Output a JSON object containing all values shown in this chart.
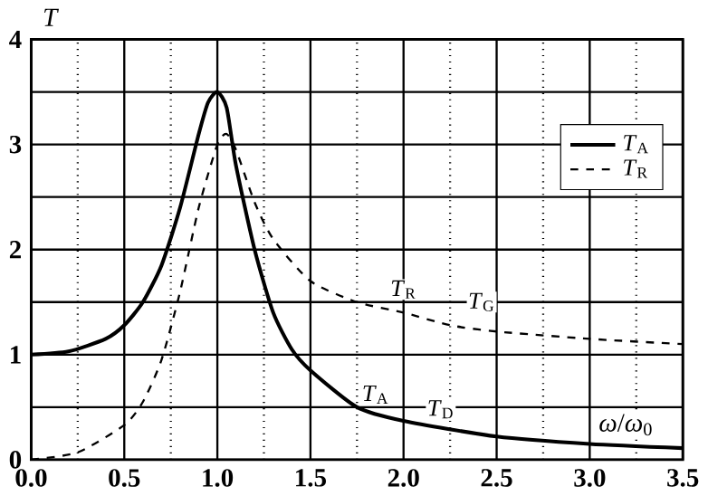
{
  "chart_data": {
    "type": "line",
    "xlabel": "*ω*/*ω*$_{0}$",
    "ylabel": "*T*",
    "x": [
      0,
      0.2,
      0.4,
      0.5,
      0.6,
      0.7,
      0.8,
      0.9,
      0.95,
      1.0,
      1.05,
      1.1,
      1.2,
      1.3,
      1.4,
      1.5,
      1.75,
      2.0,
      2.5,
      3.0,
      3.5
    ],
    "series": [
      {
        "name": "*T*$_{A}$",
        "color": "#000000",
        "line_style": "solid",
        "values": [
          1,
          1.03,
          1.15,
          1.28,
          1.5,
          1.85,
          2.4,
          3.1,
          3.4,
          3.5,
          3.35,
          2.8,
          2.0,
          1.4,
          1.05,
          0.85,
          0.5,
          0.37,
          0.22,
          0.15,
          0.11
        ]
      },
      {
        "name": "*T*$_{R}$",
        "color": "#000000",
        "line_style": "dashed",
        "x": [
          0,
          0.25,
          0.5,
          0.6,
          0.7,
          0.8,
          0.9,
          1.0,
          1.05,
          1.1,
          1.2,
          1.3,
          1.5,
          1.75,
          2.0,
          2.25,
          2.5,
          3.0,
          3.5
        ],
        "values": [
          0,
          0.07,
          0.33,
          0.55,
          0.95,
          1.6,
          2.4,
          3.0,
          3.1,
          2.95,
          2.45,
          2.1,
          1.7,
          1.5,
          1.4,
          1.28,
          1.22,
          1.15,
          1.1
        ]
      }
    ],
    "xlim": [
      0,
      3.5
    ],
    "xticks": [
      {
        "value": 0,
        "label": "0.0"
      },
      {
        "value": 0.25,
        "label": null
      },
      {
        "value": 0.5,
        "label": "0.5"
      },
      {
        "value": 0.75,
        "label": null
      },
      {
        "value": 1,
        "label": "1.0"
      },
      {
        "value": 1.25,
        "label": null
      },
      {
        "value": 1.5,
        "label": "1.5"
      },
      {
        "value": 1.75,
        "label": null
      },
      {
        "value": 2,
        "label": "2.0"
      },
      {
        "value": 2.25,
        "label": null
      },
      {
        "value": 2.5,
        "label": "2.5"
      },
      {
        "value": 2.75,
        "label": null
      },
      {
        "value": 3,
        "label": "3.0"
      },
      {
        "value": 3.25,
        "label": null
      },
      {
        "value": 3.5,
        "label": "3.5"
      }
    ],
    "ylim": [
      0,
      4
    ],
    "yticks": [
      0,
      {
        "value": 0.5,
        "label": null
      },
      1,
      {
        "value": 1.5,
        "label": null
      },
      2,
      {
        "value": 2.5,
        "label": null
      },
      3,
      {
        "value": 3.5,
        "label": null
      },
      4
    ],
    "grid": true,
    "legend": "right",
    "annotations": [
      {
        "text": "*T*$_{R}$",
        "x": 2.0,
        "y": 1.62
      },
      {
        "text": "*T*$_{G}$",
        "x": 2.42,
        "y": 1.5
      },
      {
        "text": "*T*$_{A}$",
        "x": 1.85,
        "y": 0.62
      },
      {
        "text": "*T*$_{D}$",
        "x": 2.2,
        "y": 0.48
      }
    ]
  }
}
